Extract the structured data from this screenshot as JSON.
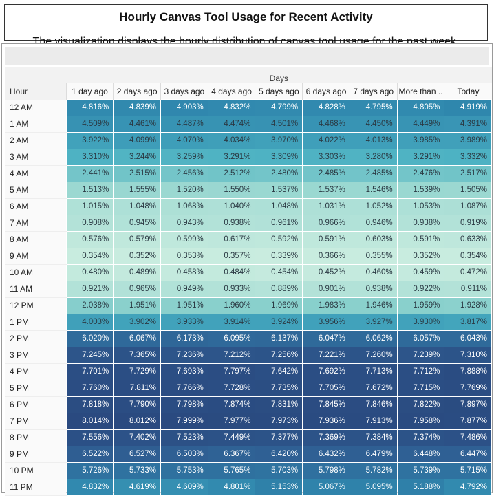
{
  "title": "Hourly Canvas Tool Usage for Recent Activity",
  "subtitle": "The visualization displays the hourly distribution of canvas tool usage for the past week.",
  "chart_data": {
    "type": "heatmap",
    "row_header": "Hour",
    "column_group_header": "Days",
    "columns": [
      "1 day ago",
      "2 days ago",
      "3 days ago",
      "4 days ago",
      "5 days ago",
      "6 days ago",
      "7 days ago",
      "More than ..",
      "Today"
    ],
    "rows": [
      "12 AM",
      "1 AM",
      "2 AM",
      "3 AM",
      "4 AM",
      "5 AM",
      "6 AM",
      "7 AM",
      "8 AM",
      "9 AM",
      "10 AM",
      "11 AM",
      "12 PM",
      "1 PM",
      "2 PM",
      "3 PM",
      "4 PM",
      "5 PM",
      "6 PM",
      "7 PM",
      "8 PM",
      "9 PM",
      "10 PM",
      "11 PM"
    ],
    "cells": [
      [
        "4.816%",
        "4.839%",
        "4.903%",
        "4.832%",
        "4.799%",
        "4.828%",
        "4.795%",
        "4.805%",
        "4.919%"
      ],
      [
        "4.509%",
        "4.461%",
        "4.487%",
        "4.474%",
        "4.501%",
        "4.468%",
        "4.450%",
        "4.449%",
        "4.391%"
      ],
      [
        "3.922%",
        "4.099%",
        "4.070%",
        "4.034%",
        "3.970%",
        "4.022%",
        "4.013%",
        "3.985%",
        "3.989%"
      ],
      [
        "3.310%",
        "3.244%",
        "3.259%",
        "3.291%",
        "3.309%",
        "3.303%",
        "3.280%",
        "3.291%",
        "3.332%"
      ],
      [
        "2.441%",
        "2.515%",
        "2.456%",
        "2.512%",
        "2.480%",
        "2.485%",
        "2.485%",
        "2.476%",
        "2.517%"
      ],
      [
        "1.513%",
        "1.555%",
        "1.520%",
        "1.550%",
        "1.537%",
        "1.537%",
        "1.546%",
        "1.539%",
        "1.505%"
      ],
      [
        "1.015%",
        "1.048%",
        "1.068%",
        "1.040%",
        "1.048%",
        "1.031%",
        "1.052%",
        "1.053%",
        "1.087%"
      ],
      [
        "0.908%",
        "0.945%",
        "0.943%",
        "0.938%",
        "0.961%",
        "0.966%",
        "0.946%",
        "0.938%",
        "0.919%"
      ],
      [
        "0.576%",
        "0.579%",
        "0.599%",
        "0.617%",
        "0.592%",
        "0.591%",
        "0.603%",
        "0.591%",
        "0.633%"
      ],
      [
        "0.354%",
        "0.352%",
        "0.353%",
        "0.357%",
        "0.339%",
        "0.366%",
        "0.355%",
        "0.352%",
        "0.354%"
      ],
      [
        "0.480%",
        "0.489%",
        "0.458%",
        "0.484%",
        "0.454%",
        "0.452%",
        "0.460%",
        "0.459%",
        "0.472%"
      ],
      [
        "0.921%",
        "0.965%",
        "0.949%",
        "0.933%",
        "0.889%",
        "0.901%",
        "0.938%",
        "0.922%",
        "0.911%"
      ],
      [
        "2.038%",
        "1.951%",
        "1.951%",
        "1.960%",
        "1.969%",
        "1.983%",
        "1.946%",
        "1.959%",
        "1.928%"
      ],
      [
        "4.003%",
        "3.902%",
        "3.933%",
        "3.914%",
        "3.924%",
        "3.956%",
        "3.927%",
        "3.930%",
        "3.817%"
      ],
      [
        "6.020%",
        "6.067%",
        "6.173%",
        "6.095%",
        "6.137%",
        "6.047%",
        "6.062%",
        "6.057%",
        "6.043%"
      ],
      [
        "7.245%",
        "7.365%",
        "7.236%",
        "7.212%",
        "7.256%",
        "7.221%",
        "7.260%",
        "7.239%",
        "7.310%"
      ],
      [
        "7.701%",
        "7.729%",
        "7.693%",
        "7.797%",
        "7.642%",
        "7.692%",
        "7.713%",
        "7.712%",
        "7.888%"
      ],
      [
        "7.760%",
        "7.811%",
        "7.766%",
        "7.728%",
        "7.735%",
        "7.705%",
        "7.672%",
        "7.715%",
        "7.769%"
      ],
      [
        "7.818%",
        "7.790%",
        "7.798%",
        "7.874%",
        "7.831%",
        "7.845%",
        "7.846%",
        "7.822%",
        "7.897%"
      ],
      [
        "8.014%",
        "8.012%",
        "7.999%",
        "7.977%",
        "7.973%",
        "7.936%",
        "7.913%",
        "7.958%",
        "7.877%"
      ],
      [
        "7.556%",
        "7.402%",
        "7.523%",
        "7.449%",
        "7.377%",
        "7.369%",
        "7.384%",
        "7.374%",
        "7.486%"
      ],
      [
        "6.522%",
        "6.527%",
        "6.503%",
        "6.367%",
        "6.420%",
        "6.432%",
        "6.479%",
        "6.448%",
        "6.447%"
      ],
      [
        "5.726%",
        "5.733%",
        "5.753%",
        "5.765%",
        "5.703%",
        "5.798%",
        "5.782%",
        "5.739%",
        "5.715%"
      ],
      [
        "4.832%",
        "4.619%",
        "4.609%",
        "4.801%",
        "5.153%",
        "5.067%",
        "5.095%",
        "5.188%",
        "4.792%"
      ]
    ],
    "color_scale": [
      "#c9ecdf",
      "#8dd2cd",
      "#4ab0c2",
      "#2f86ad",
      "#2f5f93",
      "#2a4a80"
    ]
  }
}
